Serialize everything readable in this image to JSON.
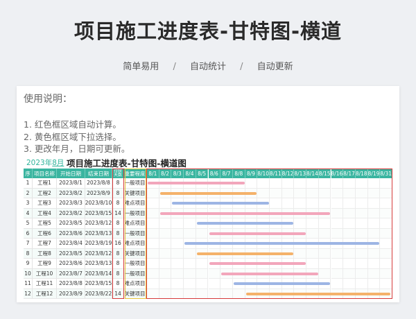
{
  "title": "项目施工进度表-甘特图-横道",
  "subtitle": [
    "简单易用",
    "自动统计",
    "自动更新"
  ],
  "subtitle_sep": "/",
  "instructions": {
    "heading": "使用说明：",
    "lines": [
      "1. 红色框区域自动计算。",
      "2. 黄色框区域下拉选择。",
      "3. 更改年月，日期可更新。"
    ]
  },
  "sheet": {
    "year_label": "2023年",
    "month_label": "8月",
    "title": "项目施工进度表-甘特图-横道图",
    "columns": [
      "序",
      "项目名称",
      "开始日期",
      "结束日期",
      "持续天数",
      "重要程度"
    ],
    "date_headers": [
      "8/1",
      "8/2",
      "8/3",
      "8/4",
      "8/5",
      "8/6",
      "8/7",
      "8/8",
      "8/9",
      "8/10",
      "8/11",
      "8/12",
      "8/13",
      "8/14",
      "8/15",
      "8/16",
      "8/17",
      "8/18",
      "8/19",
      "8/31"
    ],
    "rows": [
      {
        "no": "1",
        "name": "工程1",
        "start": "2023/8/1",
        "end": "2023/8/8",
        "days": "8",
        "level": "一般项目"
      },
      {
        "no": "2",
        "name": "工程2",
        "start": "2023/8/2",
        "end": "2023/8/9",
        "days": "8",
        "level": "关键项目"
      },
      {
        "no": "3",
        "name": "工程3",
        "start": "2023/8/3",
        "end": "2023/8/10",
        "days": "8",
        "level": "难点项目"
      },
      {
        "no": "4",
        "name": "工程4",
        "start": "2023/8/2",
        "end": "2023/8/15",
        "days": "14",
        "level": "一般项目"
      },
      {
        "no": "5",
        "name": "工程5",
        "start": "2023/8/5",
        "end": "2023/8/12",
        "days": "8",
        "level": "难点项目"
      },
      {
        "no": "6",
        "name": "工程6",
        "start": "2023/8/6",
        "end": "2023/8/13",
        "days": "8",
        "level": "一般项目"
      },
      {
        "no": "7",
        "name": "工程7",
        "start": "2023/8/4",
        "end": "2023/8/19",
        "days": "16",
        "level": "难点项目"
      },
      {
        "no": "8",
        "name": "工程8",
        "start": "2023/8/5",
        "end": "2023/8/12",
        "days": "8",
        "level": "关键项目"
      },
      {
        "no": "9",
        "name": "工程9",
        "start": "2023/8/6",
        "end": "2023/8/13",
        "days": "8",
        "level": "一般项目"
      },
      {
        "no": "10",
        "name": "工程10",
        "start": "2023/8/7",
        "end": "2023/8/14",
        "days": "8",
        "level": "一般项目"
      },
      {
        "no": "11",
        "name": "工程11",
        "start": "2023/8/8",
        "end": "2023/8/15",
        "days": "8",
        "level": "难点项目"
      },
      {
        "no": "12",
        "name": "工程12",
        "start": "2023/8/9",
        "end": "2023/8/22",
        "days": "14",
        "level": "关键项目"
      }
    ],
    "bars": [
      {
        "start_day": 1,
        "end_day": 8,
        "color": "#f2a6bb"
      },
      {
        "start_day": 2,
        "end_day": 9,
        "color": "#f4b26a"
      },
      {
        "start_day": 3,
        "end_day": 10,
        "color": "#9db5e4"
      },
      {
        "start_day": 2,
        "end_day": 15,
        "color": "#f2a6bb"
      },
      {
        "start_day": 5,
        "end_day": 12,
        "color": "#9db5e4"
      },
      {
        "start_day": 6,
        "end_day": 13,
        "color": "#f2a6bb"
      },
      {
        "start_day": 4,
        "end_day": 19,
        "color": "#9db5e4"
      },
      {
        "start_day": 5,
        "end_day": 12,
        "color": "#f4b26a"
      },
      {
        "start_day": 6,
        "end_day": 13,
        "color": "#f2a6bb"
      },
      {
        "start_day": 7,
        "end_day": 14,
        "color": "#f2a6bb"
      },
      {
        "start_day": 8,
        "end_day": 15,
        "color": "#9db5e4"
      },
      {
        "start_day": 9,
        "end_day": 22,
        "color": "#f4b26a"
      }
    ],
    "header_color": "#3ab5a0",
    "red_box_color": "#d63a3a",
    "yellow_box_color": "#e9c43b"
  }
}
